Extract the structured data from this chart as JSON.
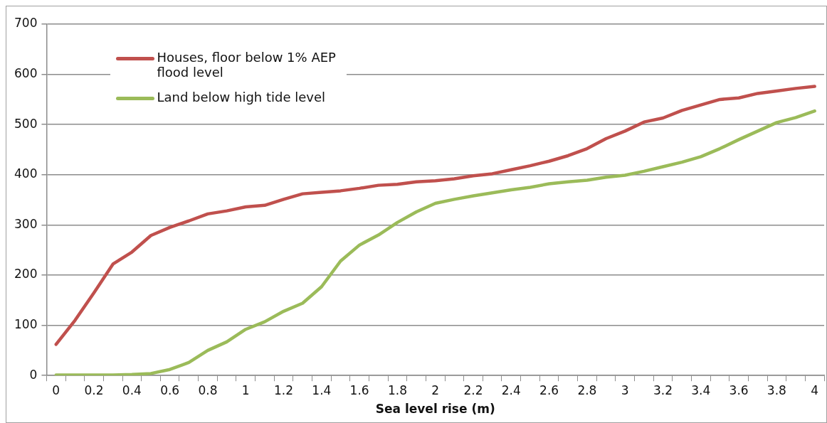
{
  "chart_data": {
    "type": "line",
    "xlabel": "Sea level rise (m)",
    "categories": [
      "0",
      null,
      "0.2",
      null,
      "0.4",
      null,
      "0.6",
      null,
      "0.8",
      null,
      "1",
      null,
      "1.2",
      null,
      "1.4",
      null,
      "1.6",
      null,
      "1.8",
      null,
      "2",
      null,
      "2.2",
      null,
      "2.4",
      null,
      "2.6",
      null,
      "2.8",
      null,
      "3",
      null,
      "3.2",
      null,
      "3.4",
      null,
      "3.6",
      null,
      "3.8",
      null,
      "4"
    ],
    "series": [
      {
        "name": "Houses, floor below 1% AEP flood level",
        "color": "#c0504d",
        "values": [
          62,
          110,
          165,
          222,
          246,
          279,
          295,
          308,
          322,
          328,
          336,
          339,
          351,
          362,
          365,
          368,
          373,
          379,
          381,
          386,
          388,
          392,
          398,
          402,
          410,
          418,
          427,
          438,
          452,
          472,
          487,
          505,
          513,
          528,
          539,
          550,
          553,
          562,
          567,
          572,
          576
        ]
      },
      {
        "name": "Land below high tide level",
        "color": "#9bbb59",
        "values": [
          1,
          1,
          1,
          1,
          2,
          4,
          12,
          26,
          50,
          67,
          92,
          107,
          128,
          144,
          177,
          228,
          260,
          280,
          305,
          326,
          343,
          351,
          358,
          364,
          370,
          375,
          382,
          386,
          389,
          395,
          399,
          407,
          416,
          425,
          436,
          452,
          470,
          487,
          504,
          514,
          527
        ]
      }
    ],
    "ylim": [
      0,
      700
    ],
    "yticks": [
      0,
      100,
      200,
      300,
      400,
      500,
      600,
      700
    ],
    "grid": "y",
    "legend": "top left",
    "marker": "none",
    "line_style": "solid"
  }
}
